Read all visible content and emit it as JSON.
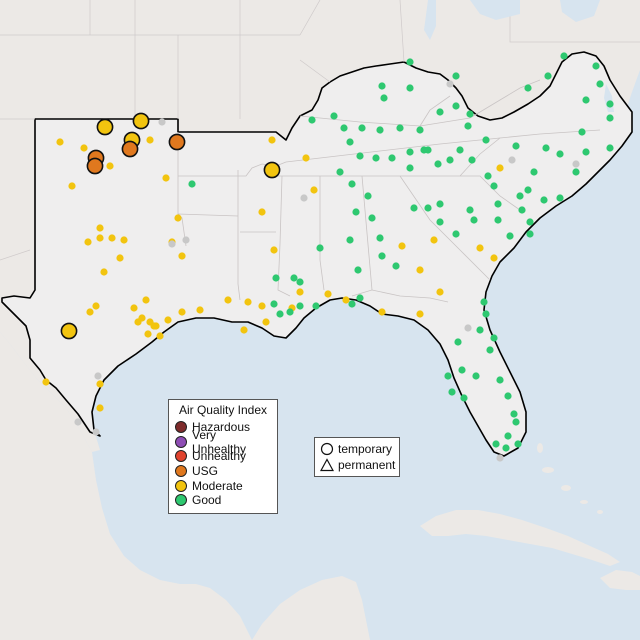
{
  "legend": {
    "title": "Air Quality Index",
    "categories": [
      {
        "label": "Hazardous",
        "color": "#7e2b2b"
      },
      {
        "label": "Very Unhealthy",
        "color": "#8e4db4"
      },
      {
        "label": "Unhealthy",
        "color": "#e0432e"
      },
      {
        "label": "USG",
        "color": "#e0781e"
      },
      {
        "label": "Moderate",
        "color": "#f2c40f"
      },
      {
        "label": "Good",
        "color": "#2ec870"
      }
    ]
  },
  "shape_legend": {
    "temporary": "temporary",
    "permanent": "permanent"
  },
  "colors": {
    "water": "#d7e4ef",
    "land": "#ece9e6",
    "region": "#efeeee",
    "state_border": "#c9c4c4",
    "region_outline": "#000000",
    "nodata": "#c8c8c8"
  }
}
